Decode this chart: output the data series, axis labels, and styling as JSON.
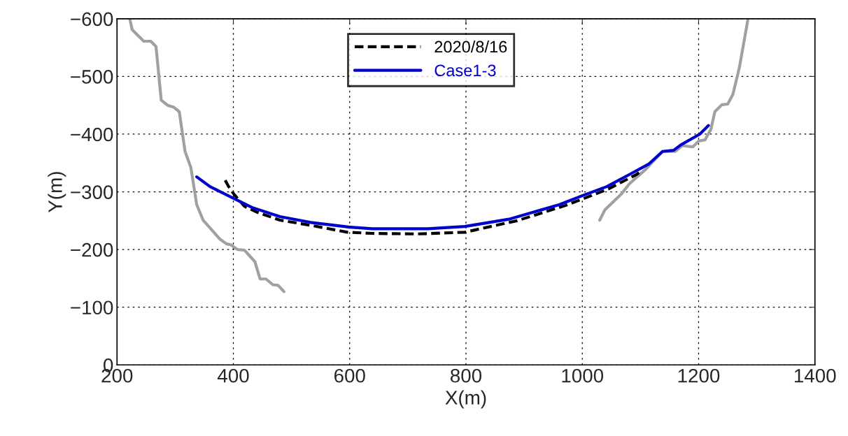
{
  "chart_data": {
    "type": "line",
    "xlabel": "X(m)",
    "ylabel": "Y(m)",
    "xlim": [
      200,
      1400
    ],
    "xticks": [
      200,
      400,
      600,
      800,
      1000,
      1200,
      1400
    ],
    "ylim": [
      0,
      -600
    ],
    "yticks": [
      0,
      -100,
      -200,
      -300,
      -400,
      -500,
      -600
    ],
    "grid": true,
    "legend": "top",
    "series": [
      {
        "color": "#a0a0a0",
        "line_style": "solid",
        "x": [
          222,
          226,
          246,
          258,
          267,
          276,
          287,
          297,
          307,
          317,
          327,
          337,
          348,
          362,
          377,
          388,
          396,
          407,
          419,
          437,
          446,
          456,
          468,
          477,
          487
        ],
        "values": [
          -600,
          -581,
          -561,
          -561,
          -552,
          -459,
          -450,
          -447,
          -439,
          -370,
          -342,
          -278,
          -251,
          -235,
          -218,
          -210,
          -208,
          -200,
          -199,
          -179,
          -149,
          -149,
          -139,
          -138,
          -127
        ]
      },
      {
        "color": "#a0a0a0",
        "line_style": "solid",
        "x": [
          1030,
          1039,
          1067,
          1081,
          1109,
          1138,
          1160,
          1172,
          1190,
          1200,
          1211,
          1221,
          1228,
          1240,
          1250,
          1259,
          1270,
          1285
        ],
        "values": [
          -251,
          -269,
          -296,
          -314,
          -339,
          -370,
          -370,
          -380,
          -378,
          -388,
          -390,
          -408,
          -439,
          -451,
          -452,
          -469,
          -515,
          -600
        ]
      },
      {
        "name": "2020/8/16",
        "color": "#000000",
        "line_style": "dashed",
        "x": [
          386,
          392,
          401,
          419,
          440,
          480,
          533,
          596,
          639,
          716,
          798,
          888,
          970,
          999,
          1045,
          1093,
          1100
        ],
        "values": [
          -320,
          -309,
          -296,
          -275,
          -265,
          -251,
          -242,
          -230,
          -228,
          -227,
          -230,
          -250,
          -276,
          -287,
          -305,
          -330,
          -335
        ]
      },
      {
        "name": "Case1-3",
        "color": "#0000cc",
        "line_style": "solid",
        "x": [
          337,
          360,
          398,
          432,
          480,
          533,
          598,
          639,
          734,
          798,
          876,
          961,
          999,
          1042,
          1081,
          1114,
          1138,
          1157,
          1169,
          1202,
          1217
        ],
        "values": [
          -326,
          -309,
          -290,
          -273,
          -257,
          -247,
          -239,
          -236,
          -236,
          -240,
          -253,
          -278,
          -293,
          -309,
          -330,
          -348,
          -370,
          -372,
          -381,
          -400,
          -415
        ]
      }
    ]
  }
}
